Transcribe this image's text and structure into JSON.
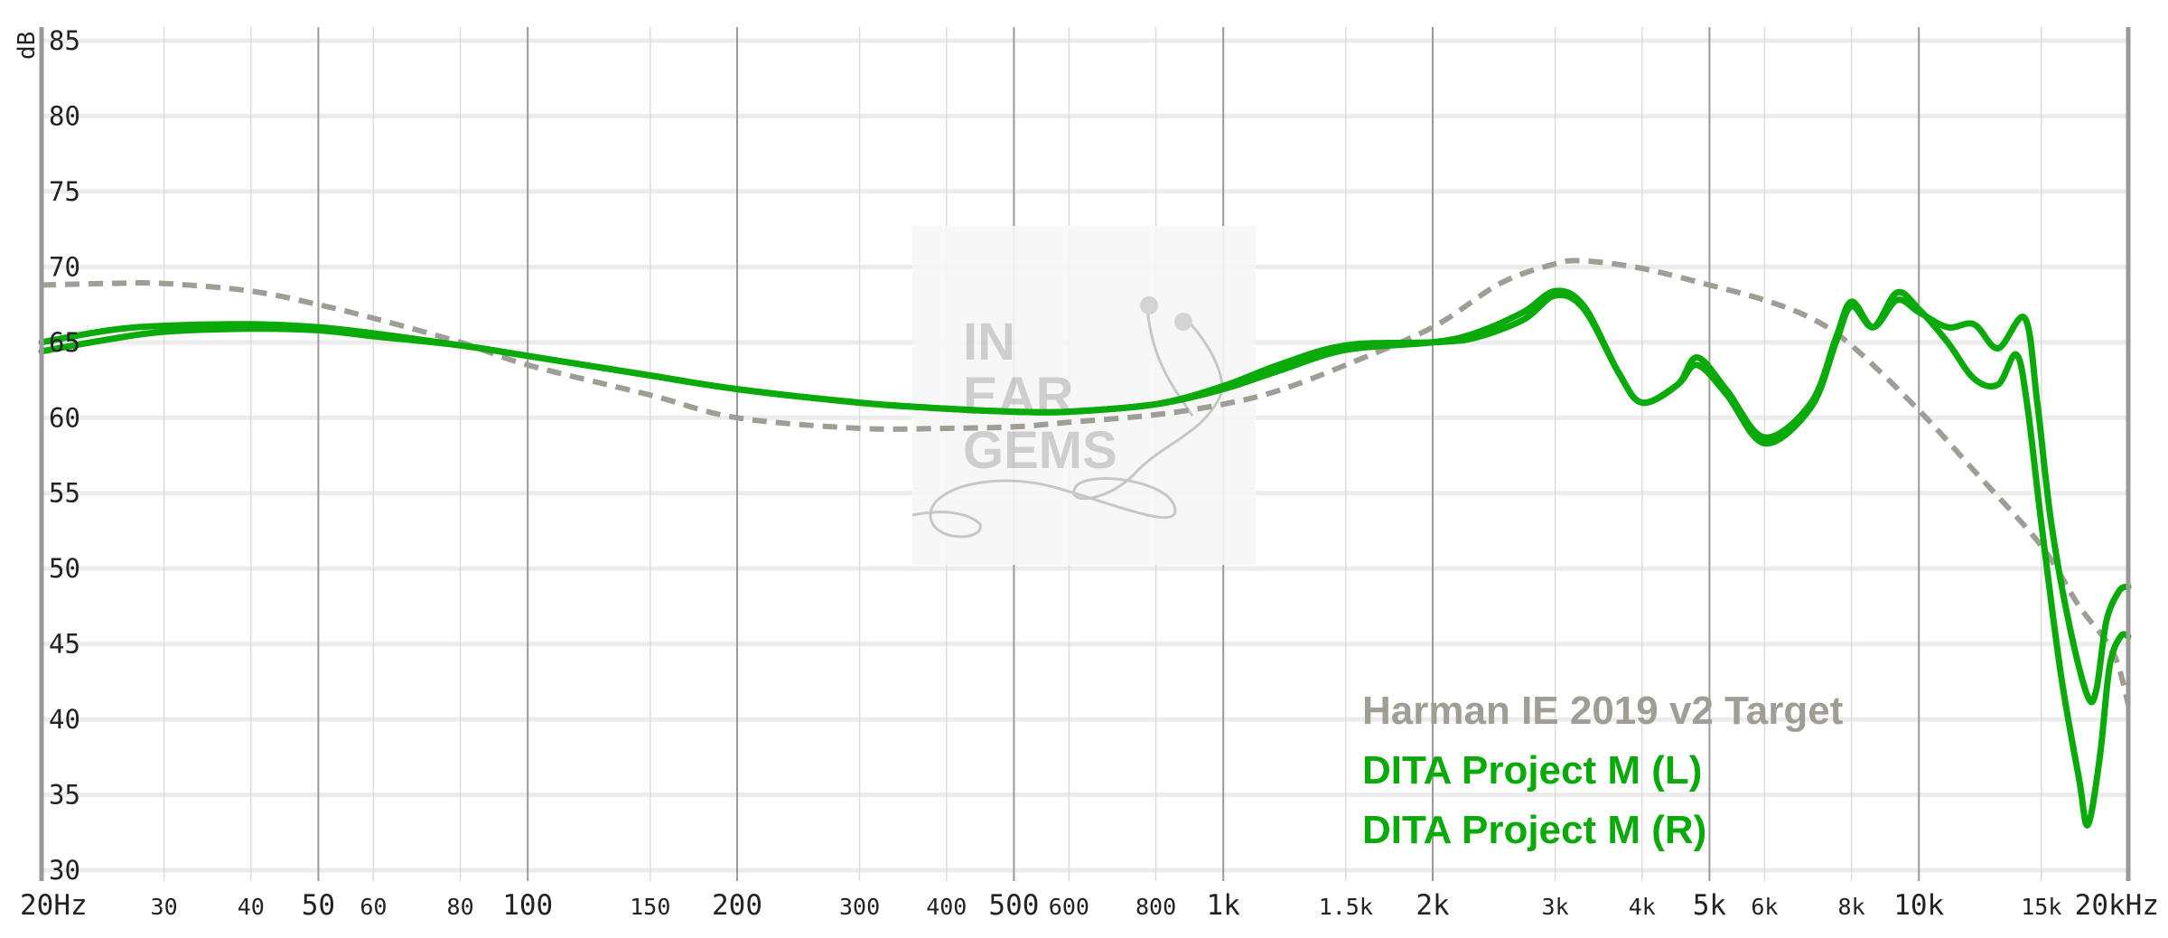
{
  "chart_data": {
    "type": "line",
    "title": "",
    "xlabel": "",
    "ylabel": "dB",
    "x_scale": "log",
    "xlim": [
      20,
      20000
    ],
    "ylim": [
      30,
      85
    ],
    "grid": true,
    "legend_position": "bottom-right",
    "x_ticks": [
      {
        "value": 20,
        "label": "20Hz",
        "major": true
      },
      {
        "value": 30,
        "label": "30",
        "major": false
      },
      {
        "value": 40,
        "label": "40",
        "major": false
      },
      {
        "value": 50,
        "label": "50",
        "major": true
      },
      {
        "value": 60,
        "label": "60",
        "major": false
      },
      {
        "value": 80,
        "label": "80",
        "major": false
      },
      {
        "value": 100,
        "label": "100",
        "major": true
      },
      {
        "value": 150,
        "label": "150",
        "major": false
      },
      {
        "value": 200,
        "label": "200",
        "major": true
      },
      {
        "value": 300,
        "label": "300",
        "major": false
      },
      {
        "value": 400,
        "label": "400",
        "major": false
      },
      {
        "value": 500,
        "label": "500",
        "major": true
      },
      {
        "value": 600,
        "label": "600",
        "major": false
      },
      {
        "value": 800,
        "label": "800",
        "major": false
      },
      {
        "value": 1000,
        "label": "1k",
        "major": true
      },
      {
        "value": 1500,
        "label": "1.5k",
        "major": false
      },
      {
        "value": 2000,
        "label": "2k",
        "major": true
      },
      {
        "value": 3000,
        "label": "3k",
        "major": false
      },
      {
        "value": 4000,
        "label": "4k",
        "major": false
      },
      {
        "value": 5000,
        "label": "5k",
        "major": true
      },
      {
        "value": 6000,
        "label": "6k",
        "major": false
      },
      {
        "value": 8000,
        "label": "8k",
        "major": false
      },
      {
        "value": 10000,
        "label": "10k",
        "major": true
      },
      {
        "value": 15000,
        "label": "15k",
        "major": false
      },
      {
        "value": 20000,
        "label": "20kHz",
        "major": true
      }
    ],
    "y_ticks": [
      {
        "value": 30,
        "label": "30"
      },
      {
        "value": 35,
        "label": "35"
      },
      {
        "value": 40,
        "label": "40"
      },
      {
        "value": 45,
        "label": "45"
      },
      {
        "value": 50,
        "label": "50"
      },
      {
        "value": 55,
        "label": "55"
      },
      {
        "value": 60,
        "label": "60"
      },
      {
        "value": 65,
        "label": "65"
      },
      {
        "value": 70,
        "label": "70"
      },
      {
        "value": 75,
        "label": "75"
      },
      {
        "value": 80,
        "label": "80"
      },
      {
        "value": 85,
        "label": "85"
      }
    ],
    "series": [
      {
        "name": "Harman IE 2019 v2 Target",
        "color": "#a09d95",
        "dash": true,
        "x": [
          20,
          25,
          30,
          40,
          50,
          60,
          80,
          100,
          150,
          200,
          300,
          400,
          500,
          600,
          800,
          1000,
          1200,
          1500,
          2000,
          2500,
          3000,
          3300,
          4000,
          5000,
          6000,
          7000,
          8000,
          10000,
          12000,
          15000,
          17000,
          19000,
          20000
        ],
        "values": [
          68.8,
          68.9,
          68.9,
          68.4,
          67.5,
          66.6,
          65.0,
          63.5,
          61.5,
          60.0,
          59.3,
          59.3,
          59.4,
          59.7,
          60.2,
          60.9,
          61.8,
          63.5,
          66.0,
          68.9,
          70.2,
          70.4,
          69.9,
          68.8,
          67.8,
          66.6,
          64.8,
          60.5,
          56.5,
          51.5,
          47.5,
          44.5,
          41.0
        ]
      },
      {
        "name": "DITA Project M (L)",
        "color": "#0aaa0a",
        "dash": false,
        "x": [
          20,
          25,
          30,
          40,
          50,
          60,
          80,
          100,
          150,
          200,
          300,
          400,
          500,
          600,
          800,
          1000,
          1200,
          1500,
          2000,
          2300,
          2700,
          3000,
          3300,
          3700,
          4000,
          4500,
          4800,
          5300,
          6000,
          7000,
          7600,
          8000,
          8600,
          9300,
          10000,
          11000,
          12000,
          13000,
          14200,
          14800,
          15500,
          16500,
          17500,
          18000,
          18600,
          19400,
          20000
        ],
        "values": [
          65.0,
          65.8,
          66.1,
          66.2,
          66.0,
          65.6,
          64.8,
          64.1,
          62.8,
          61.9,
          61.0,
          60.6,
          60.4,
          60.4,
          60.9,
          62.1,
          63.5,
          64.8,
          65.0,
          65.3,
          66.5,
          68.1,
          67.2,
          63.0,
          61.0,
          62.2,
          64.0,
          61.8,
          58.7,
          61.0,
          65.3,
          67.7,
          66.0,
          67.8,
          67.0,
          66.0,
          66.2,
          64.6,
          66.6,
          61.0,
          53.0,
          46.0,
          41.5,
          42.0,
          46.5,
          48.5,
          48.8
        ]
      },
      {
        "name": "DITA Project M (R)",
        "color": "#0aaa0a",
        "dash": false,
        "x": [
          20,
          25,
          30,
          40,
          50,
          60,
          80,
          100,
          150,
          200,
          300,
          400,
          500,
          600,
          800,
          1000,
          1200,
          1500,
          2000,
          2300,
          2700,
          3000,
          3300,
          3700,
          4000,
          4500,
          4800,
          5300,
          6000,
          7000,
          7600,
          8000,
          8600,
          9300,
          10000,
          11000,
          12000,
          13000,
          13800,
          14300,
          15000,
          16000,
          17000,
          17500,
          18200,
          18800,
          19500,
          20000
        ],
        "values": [
          64.4,
          65.2,
          65.7,
          65.9,
          65.8,
          65.4,
          64.8,
          64.1,
          62.8,
          61.9,
          61.0,
          60.6,
          60.4,
          60.4,
          60.9,
          61.9,
          63.1,
          64.5,
          65.0,
          65.6,
          67.0,
          68.4,
          67.4,
          63.0,
          61.0,
          62.2,
          63.5,
          61.5,
          58.3,
          60.7,
          65.0,
          67.4,
          66.0,
          68.3,
          67.2,
          65.0,
          62.6,
          62.2,
          64.2,
          61.0,
          53.0,
          43.0,
          36.0,
          33.0,
          37.5,
          43.5,
          45.5,
          45.5
        ]
      }
    ],
    "watermark": "IN EAR GEMS"
  }
}
